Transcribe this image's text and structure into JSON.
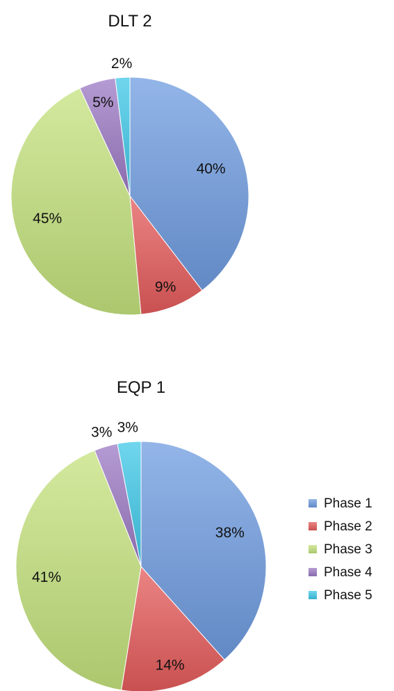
{
  "chart_data": [
    {
      "type": "pie",
      "title": "DLT 2",
      "categories": [
        "Phase 1",
        "Phase 2",
        "Phase 3",
        "Phase 4",
        "Phase 5"
      ],
      "values": [
        40,
        9,
        45,
        5,
        2
      ],
      "labels": [
        "40%",
        "9%",
        "45%",
        "5%",
        "2%"
      ]
    },
    {
      "type": "pie",
      "title": "EQP 1",
      "categories": [
        "Phase 1",
        "Phase 2",
        "Phase 3",
        "Phase 4",
        "Phase 5"
      ],
      "values": [
        38,
        14,
        41,
        3,
        3
      ],
      "labels": [
        "38%",
        "14%",
        "41%",
        "3%",
        "3%"
      ]
    }
  ],
  "legend": {
    "items": [
      "Phase 1",
      "Phase 2",
      "Phase 3",
      "Phase 4",
      "Phase 5"
    ]
  },
  "colors": {
    "Phase 1": "#6f9ce0",
    "Phase 2": "#e45b5b",
    "Phase 3": "#c4e27d",
    "Phase 4": "#9c7ac4",
    "Phase 5": "#40c8e8"
  }
}
